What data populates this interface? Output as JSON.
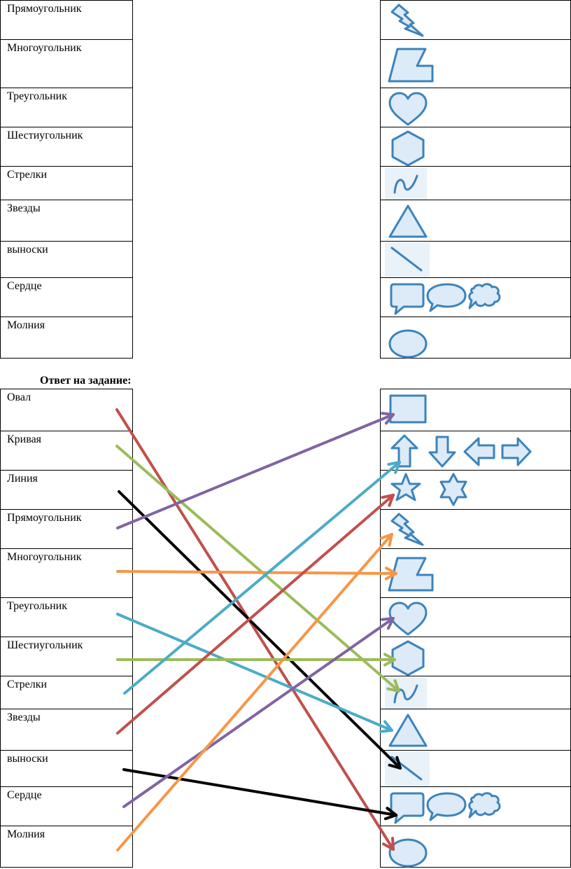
{
  "top_table": {
    "left_labels": [
      "Прямоугольник",
      "Многоугольник",
      "Треугольник",
      "Шестиугольник",
      "Стрелки",
      "Звезды",
      "выноски",
      "Сердце",
      "Молния"
    ],
    "right_icons": [
      "lightning-icon",
      "polygon-icon",
      "heart-icon",
      "hexagon-icon",
      "curve-icon",
      "triangle-icon",
      "line-icon",
      "callouts-icon",
      "oval-icon"
    ]
  },
  "answer": {
    "title": "Ответ на задание:",
    "left_labels": [
      "Овал",
      "Кривая",
      "Линия",
      "Прямоугольник",
      "Многоугольник",
      "Треугольник",
      "Шестиугольник",
      "Стрелки",
      "Звезды",
      "выноски",
      "Сердце",
      "Молния"
    ],
    "right_icons": [
      "rectangle-icon",
      "block-arrows-icon",
      "stars-icon",
      "lightning-icon",
      "polygon-icon",
      "heart-icon",
      "hexagon-icon",
      "curve-icon",
      "triangle-icon",
      "line-icon",
      "callouts-icon",
      "oval-icon"
    ],
    "connections": [
      {
        "from": "Овал",
        "to": "oval-icon",
        "color": "#c0504d"
      },
      {
        "from": "Кривая",
        "to": "curve-icon",
        "color": "#9bbb59"
      },
      {
        "from": "Линия",
        "to": "line-icon",
        "color": "#000000"
      },
      {
        "from": "Прямоугольник",
        "to": "rectangle-icon",
        "color": "#8064a2"
      },
      {
        "from": "Многоугольник",
        "to": "polygon-icon",
        "color": "#f79646"
      },
      {
        "from": "Треугольник",
        "to": "triangle-icon",
        "color": "#4bacc6"
      },
      {
        "from": "Шестиугольник",
        "to": "hexagon-icon",
        "color": "#9bbb59"
      },
      {
        "from": "Стрелки",
        "to": "block-arrows-icon",
        "color": "#4bacc6"
      },
      {
        "from": "Звезды",
        "to": "stars-icon",
        "color": "#c0504d"
      },
      {
        "from": "выноски",
        "to": "callouts-icon",
        "color": "#000000"
      },
      {
        "from": "Сердце",
        "to": "heart-icon",
        "color": "#8064a2"
      },
      {
        "from": "Молния",
        "to": "lightning-icon",
        "color": "#f79646"
      }
    ]
  }
}
